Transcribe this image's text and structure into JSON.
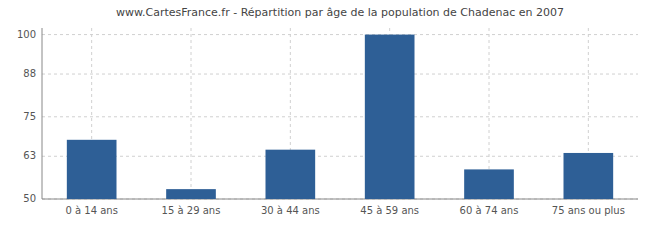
{
  "chart_data": {
    "type": "bar",
    "title": "www.CartesFrance.fr - Répartition par âge de la population de Chadenac en 2007",
    "categories": [
      "0 à 14 ans",
      "15 à 29 ans",
      "30 à 44 ans",
      "45 à 59 ans",
      "60 à 74 ans",
      "75 ans ou plus"
    ],
    "values": [
      68,
      53,
      65,
      100,
      59,
      64
    ],
    "color": "#2e5f96",
    "ylim": [
      50,
      102
    ],
    "yticks": [
      50,
      63,
      75,
      88,
      100
    ],
    "grid": true
  }
}
